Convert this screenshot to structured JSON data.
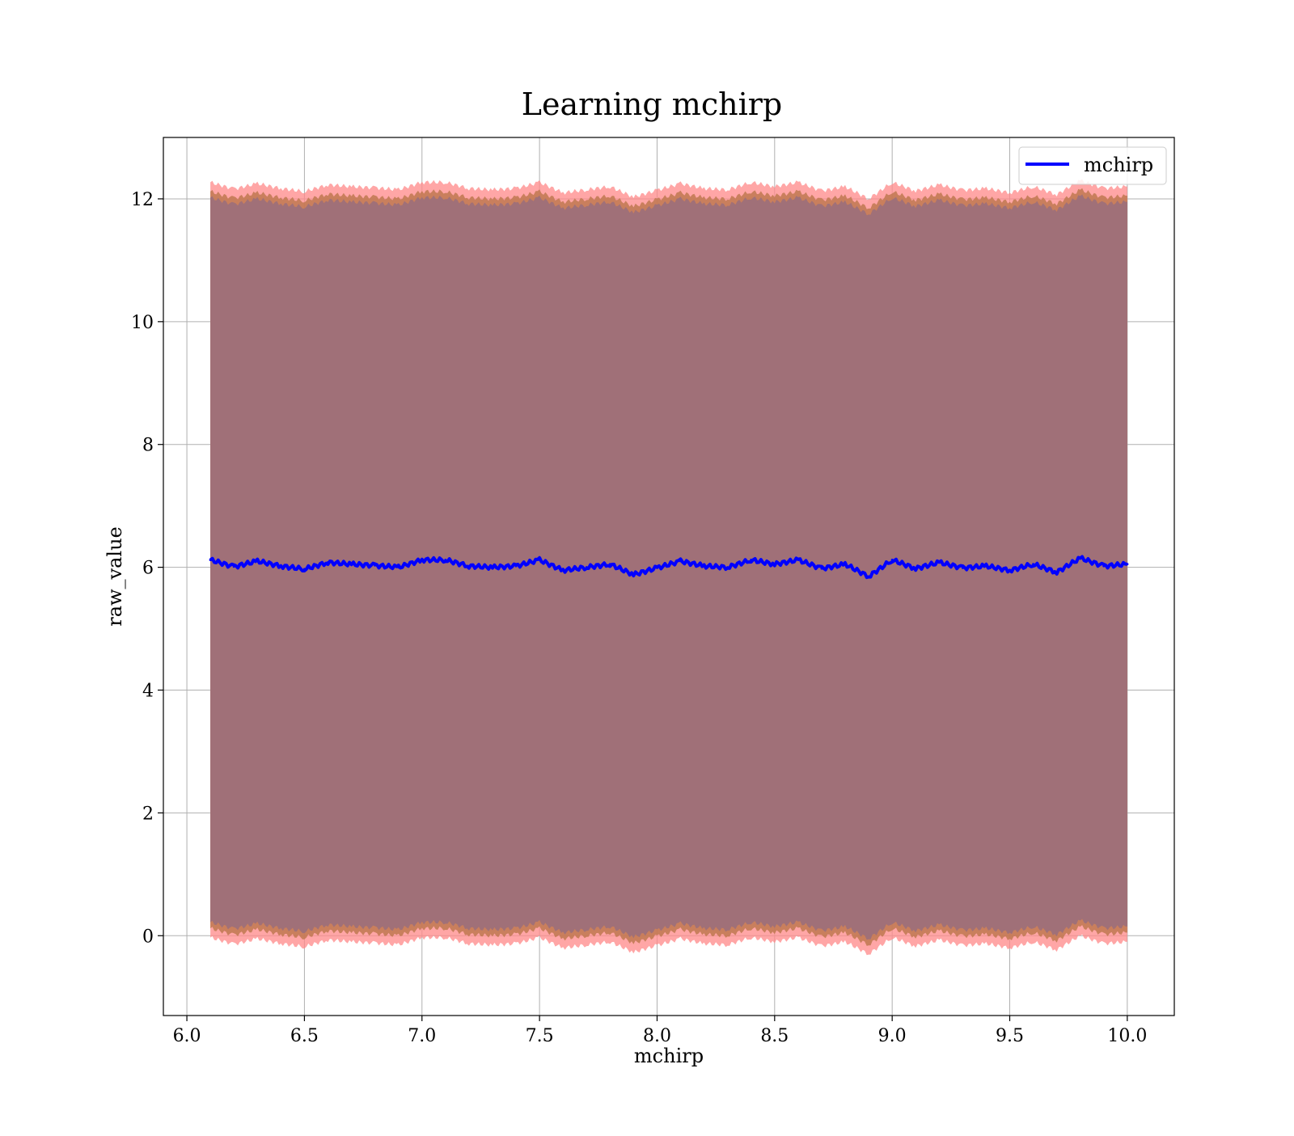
{
  "chart_data": {
    "type": "area",
    "title": "Learning mchirp",
    "xlabel": "mchirp",
    "ylabel": "raw_value",
    "xlim": [
      5.9,
      10.2
    ],
    "ylim": [
      -1.3,
      13.0
    ],
    "xticks": [
      6.0,
      6.5,
      7.0,
      7.5,
      8.0,
      8.5,
      9.0,
      9.5,
      10.0
    ],
    "xtick_labels": [
      "6.0",
      "6.5",
      "7.0",
      "7.5",
      "8.0",
      "8.5",
      "9.0",
      "9.5",
      "10.0"
    ],
    "yticks": [
      0,
      2,
      4,
      6,
      8,
      10,
      12
    ],
    "ytick_labels": [
      "0",
      "2",
      "4",
      "6",
      "8",
      "10",
      "12"
    ],
    "grid": true,
    "legend": {
      "position": "top-right",
      "entries": [
        "mchirp"
      ]
    },
    "colors": {
      "line": "#0000ff",
      "band_outer": "#ff8888",
      "band_mid": "#c07850",
      "band_inner": "#a07078",
      "grid": "#b0b0b0"
    },
    "x": [
      6.1,
      6.2,
      6.3,
      6.4,
      6.5,
      6.6,
      6.7,
      6.8,
      6.9,
      7.0,
      7.1,
      7.2,
      7.3,
      7.4,
      7.5,
      7.6,
      7.7,
      7.8,
      7.9,
      8.0,
      8.1,
      8.2,
      8.3,
      8.4,
      8.5,
      8.6,
      8.7,
      8.8,
      8.9,
      9.0,
      9.1,
      9.2,
      9.3,
      9.4,
      9.5,
      9.6,
      9.7,
      9.8,
      9.9,
      10.0
    ],
    "series": [
      {
        "name": "mchirp",
        "values": [
          6.12,
          6.01,
          6.1,
          6.02,
          5.97,
          6.08,
          6.05,
          6.03,
          6.0,
          6.12,
          6.12,
          6.02,
          6.0,
          6.02,
          6.12,
          5.95,
          6.0,
          6.05,
          5.88,
          5.99,
          6.1,
          6.02,
          6.0,
          6.12,
          6.05,
          6.12,
          5.98,
          6.05,
          5.85,
          6.12,
          5.98,
          6.08,
          5.99,
          6.02,
          5.95,
          6.05,
          5.92,
          6.15,
          6.02,
          6.05
        ]
      }
    ],
    "band_offsets": {
      "inner": 5.9,
      "mid": 6.0,
      "outer": 6.15
    }
  }
}
